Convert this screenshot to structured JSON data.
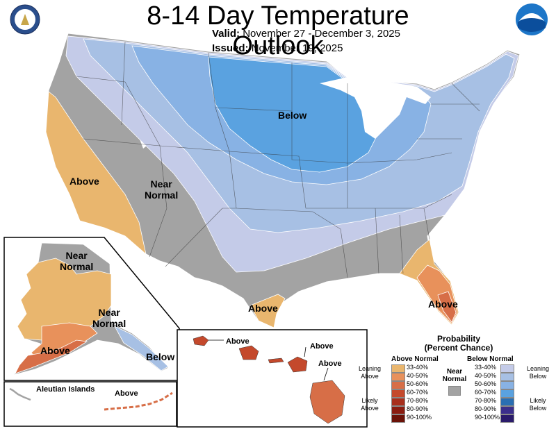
{
  "header": {
    "title": "8-14 Day Temperature Outlook",
    "valid_label": "Valid:",
    "valid_value": "November 27 - December 3, 2025",
    "issued_label": "Issued:",
    "issued_value": "November 19, 2025"
  },
  "logos": {
    "left": "doc-seal-icon",
    "right": "noaa-logo-icon"
  },
  "map_labels": {
    "conus_below": "Below",
    "conus_near_normal": "Near\nNormal",
    "conus_above_west": "Above",
    "conus_above_texas": "Above",
    "conus_above_florida": "Above",
    "alaska_near_normal_north": "Near\nNormal",
    "alaska_near_normal_east": "Near\nNormal",
    "alaska_above": "Above",
    "alaska_below": "Below",
    "aleutian_title": "Aleutian Islands",
    "aleutian_above": "Above",
    "hawaii_above_1": "Above",
    "hawaii_above_2": "Above",
    "hawaii_above_3": "Above"
  },
  "legend": {
    "title": "Probability\n(Percent Chance)",
    "above_header": "Above Normal",
    "below_header": "Below Normal",
    "near_label": "Near\nNormal",
    "leaning_above": "Leaning\nAbove",
    "likely_above": "Likely\nAbove",
    "leaning_below": "Leaning\nBelow",
    "likely_below": "Likely\nBelow",
    "ranges": [
      "33-40%",
      "40-50%",
      "50-60%",
      "60-70%",
      "70-80%",
      "80-90%",
      "90-100%"
    ],
    "above_colors": [
      "#e9b66e",
      "#e8915b",
      "#d76e47",
      "#c4492c",
      "#a82f1c",
      "#8a1c10",
      "#6b1208"
    ],
    "below_colors": [
      "#c4cbe8",
      "#a7c0e4",
      "#88b2e4",
      "#5aa2e0",
      "#2a6fb3",
      "#3b2f8c",
      "#2a1b6b"
    ],
    "near_color": "#a3a3a3"
  }
}
